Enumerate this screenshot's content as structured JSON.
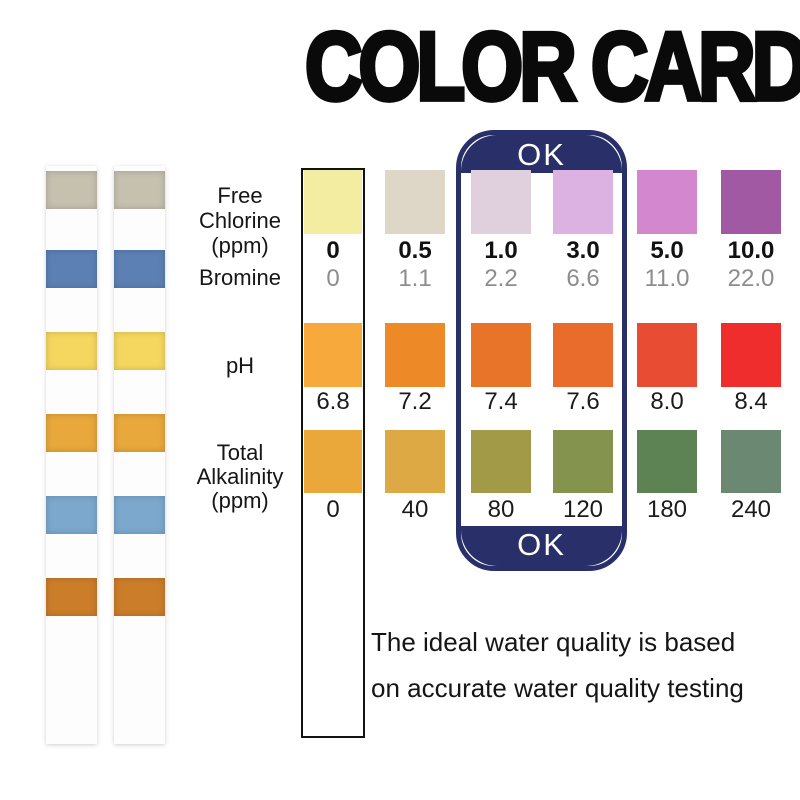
{
  "title": "COLOR CARD",
  "badge": {
    "top_label": "OK",
    "bottom_label": "OK",
    "color": "#293069"
  },
  "footer": {
    "line1": "The ideal water quality is based",
    "line2": "on accurate water quality testing"
  },
  "strips": {
    "count": 2,
    "pad_colors": [
      "#c6c0af",
      "#5c80b4",
      "#f5d75f",
      "#e8a83c",
      "#7ca8cd",
      "#cb7d2a"
    ]
  },
  "chart_data": {
    "type": "table",
    "title": "COLOR CARD",
    "columns": 6,
    "ok_columns": [
      2,
      3
    ],
    "rows": [
      {
        "id": "free-chlorine",
        "label_lines": [
          "Free",
          "Chlorine",
          "(ppm)"
        ],
        "values": [
          "0",
          "0.5",
          "1.0",
          "3.0",
          "5.0",
          "10.0"
        ],
        "swatches": [
          "#f2eda1",
          "#ded6c7",
          "#e0cfdd",
          "#dcb2e2",
          "#d287ce",
          "#a159a4"
        ],
        "value_style": "bold-black"
      },
      {
        "id": "bromine",
        "label_lines": [
          "Bromine"
        ],
        "values": [
          "0",
          "1.1",
          "2.2",
          "6.6",
          "11.0",
          "22.0"
        ],
        "swatches": null,
        "value_style": "gray"
      },
      {
        "id": "ph",
        "label_lines": [
          "pH"
        ],
        "values": [
          "6.8",
          "7.2",
          "7.4",
          "7.6",
          "8.0",
          "8.4"
        ],
        "swatches": [
          "#f8a93c",
          "#ee8927",
          "#e8742a",
          "#e96c2c",
          "#e84d33",
          "#ee2d2c"
        ],
        "value_style": "black"
      },
      {
        "id": "total-alkalinity",
        "label_lines": [
          "Total",
          "Alkalinity",
          "(ppm)"
        ],
        "values": [
          "0",
          "40",
          "80",
          "120",
          "180",
          "240"
        ],
        "swatches": [
          "#eaa83a",
          "#dca944",
          "#a39a48",
          "#84934d",
          "#5d8355",
          "#6b8873"
        ],
        "value_style": "black"
      }
    ]
  }
}
